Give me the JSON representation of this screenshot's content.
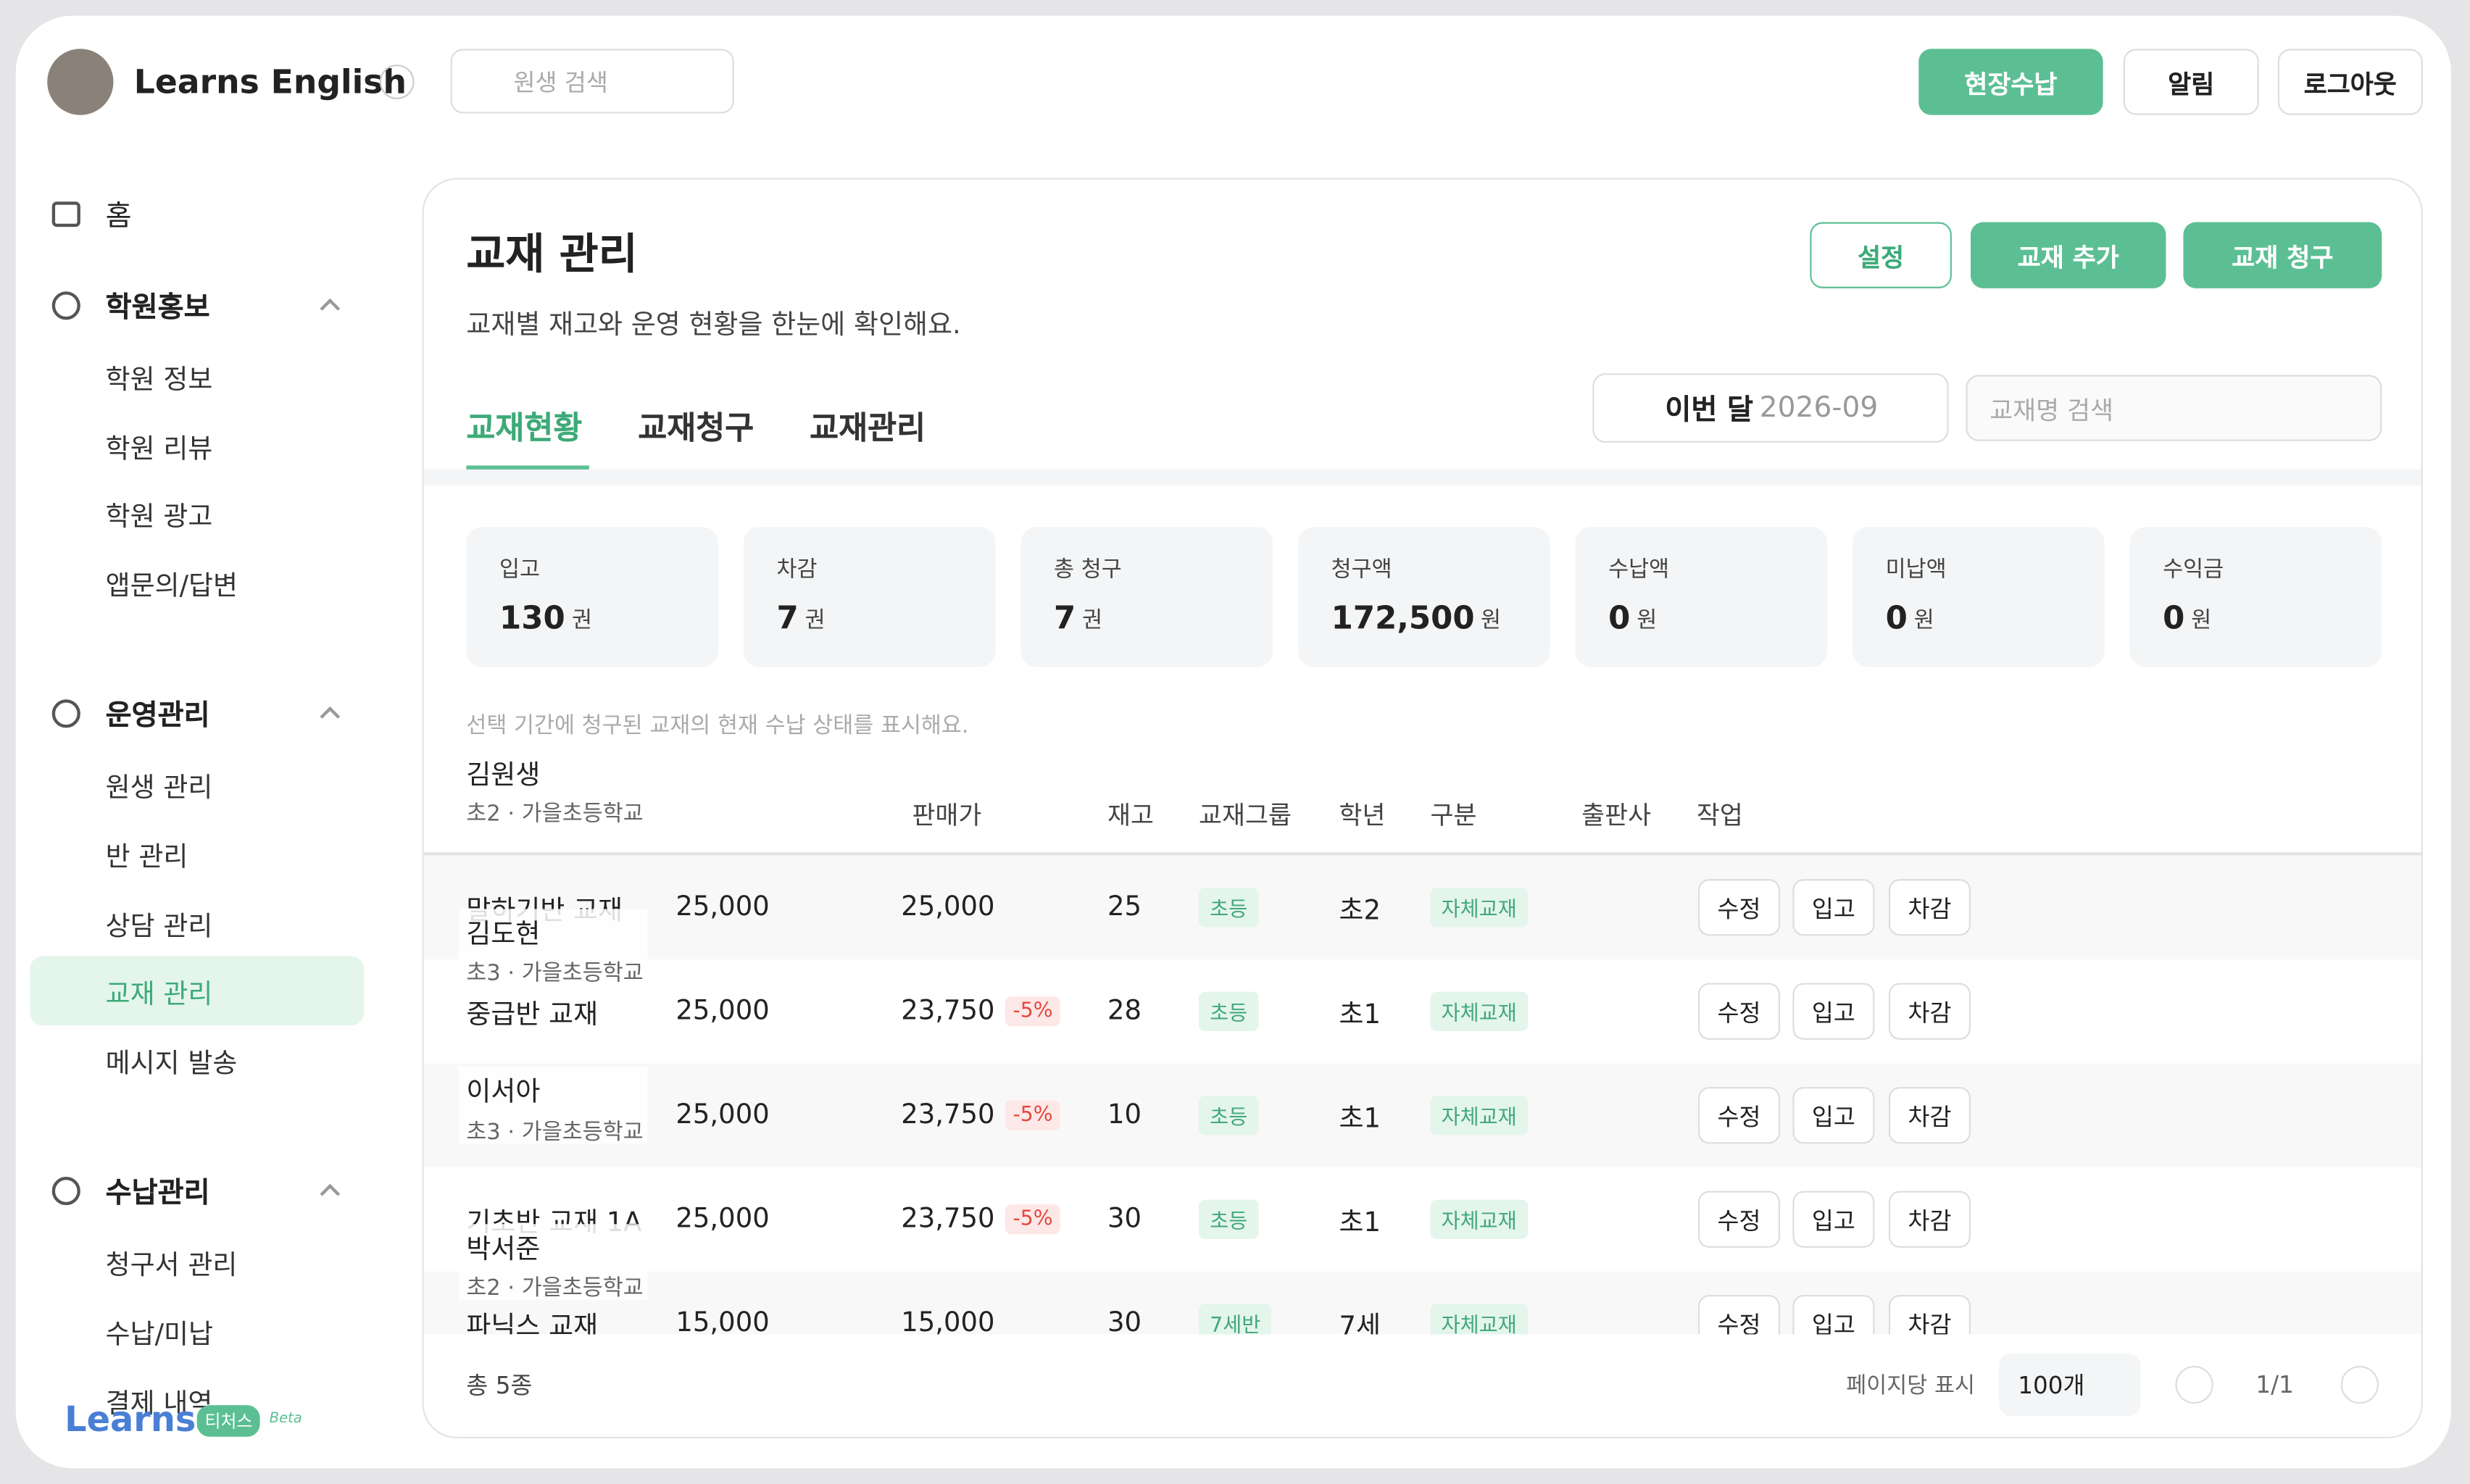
{
  "header": {
    "brand": "Learns English",
    "search_placeholder": "원생 검색",
    "buttons": [
      "현장수납",
      "알림",
      "로그아웃"
    ]
  },
  "sidebar": {
    "home": "홈",
    "groups": [
      {
        "title": "학원홍보",
        "items": [
          "학원 정보",
          "학원 리뷰",
          "학원 광고",
          "앱문의/답변"
        ]
      },
      {
        "title": "운영관리",
        "items": [
          "원생 관리",
          "반 관리",
          "상담 관리",
          "교재 관리",
          "메시지 발송"
        ]
      },
      {
        "title": "수납관리",
        "items": [
          "청구서 관리",
          "수납/미납",
          "결제 내역"
        ]
      }
    ],
    "active": "교재 관리",
    "logo": "Learns",
    "logo_tag": "티처스",
    "logo_beta": "Beta"
  },
  "main": {
    "title": "교재 관리",
    "subtitle": "교재별 재고와 운영 현황을 한눈에 확인해요.",
    "buttons": [
      "설정",
      "교재 추가",
      "교재 청구"
    ],
    "tabs": [
      "교재현황",
      "교재청구",
      "교재관리"
    ],
    "active_tab": "교재현황",
    "period_label": "이번 달",
    "period": "2026-09",
    "search_placeholder": "교재명 검색",
    "stats": [
      {
        "label": "입고",
        "value": "130",
        "unit": "권"
      },
      {
        "label": "차감",
        "value": "7",
        "unit": "권"
      },
      {
        "label": "총 청구",
        "value": "7",
        "unit": "권"
      },
      {
        "label": "청구액",
        "value": "172,500",
        "unit": "원"
      },
      {
        "label": "수납액",
        "value": "0",
        "unit": "원"
      },
      {
        "label": "미납액",
        "value": "0",
        "unit": "원"
      },
      {
        "label": "수익금",
        "value": "0",
        "unit": "원"
      }
    ],
    "note": "선택 기간에 청구된 교재의 현재 수납 상태를 표시해요.",
    "table": {
      "headers": [
        "판매가",
        "재고",
        "교재그룹",
        "학년",
        "구분",
        "출판사",
        "작업"
      ],
      "actions": [
        "수정",
        "입고",
        "차감"
      ],
      "rows": [
        {
          "name": "말하기반 교재",
          "price": "25,000",
          "sale": "25,000",
          "discount": null,
          "stock": "25",
          "group": "초등",
          "grade": "초2",
          "type": "자체교재"
        },
        {
          "name": "중급반 교재",
          "price": "25,000",
          "sale": "23,750",
          "discount": "-5%",
          "stock": "28",
          "group": "초등",
          "grade": "초1",
          "type": "자체교재"
        },
        {
          "name": null,
          "price": "25,000",
          "sale": "23,750",
          "discount": "-5%",
          "stock": "10",
          "group": "초등",
          "grade": "초1",
          "type": "자체교재"
        },
        {
          "name": "기초반 교재 1A",
          "price": "25,000",
          "sale": "23,750",
          "discount": "-5%",
          "stock": "30",
          "group": "초등",
          "grade": "초1",
          "type": "자체교재"
        },
        {
          "name": "파닉스 교재",
          "price": "15,000",
          "sale": "15,000",
          "discount": null,
          "stock": "30",
          "group": "7세반",
          "grade": "7세",
          "type": "자체교재"
        }
      ]
    },
    "student_overlay": [
      {
        "name": "김원생",
        "info": "초2 · 가을초등학교"
      },
      {
        "name": "김도현",
        "info": "초3 · 가을초등학교"
      },
      {
        "name": "이서아",
        "info": "초3 · 가을초등학교"
      },
      {
        "name": "박서준",
        "info": "초2 · 가을초등학교"
      }
    ],
    "footer": {
      "total": "총 5종",
      "per_page_label": "페이지당 표시",
      "per_page": "100개",
      "page": "1/1"
    }
  }
}
